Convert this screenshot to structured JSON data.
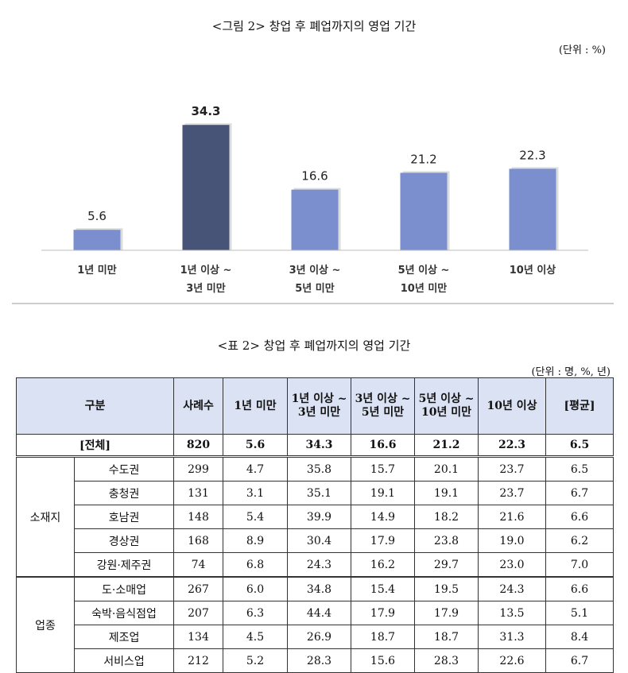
{
  "figure": {
    "title": "<그림 2> 창업 후 폐업까지의 영업 기간",
    "unit": "(단위 : %)"
  },
  "chart_data": {
    "type": "bar",
    "categories": [
      [
        "1년 미만"
      ],
      [
        "1년 이상 ~",
        "3년 미만"
      ],
      [
        "3년 이상 ~",
        "5년 미만"
      ],
      [
        "5년 이상 ~",
        "10년 미만"
      ],
      [
        "10년 이상"
      ]
    ],
    "values": [
      5.6,
      34.3,
      16.6,
      21.2,
      22.3
    ],
    "highlight_index": 1,
    "colors": {
      "bar": "#7b8fcf",
      "highlight": "#475478"
    },
    "ylim": [
      0,
      40
    ],
    "grid": false
  },
  "table": {
    "title": "<표 2> 창업 후 폐업까지의 영업 기간",
    "unit": "(단위 : 명, %, 년)",
    "headers": [
      "구분",
      "사례수",
      "1년 미만",
      "1년 이상 ~ 3년 미만",
      "3년 이상 ~ 5년 미만",
      "5년 이상 ~ 10년 미만",
      "10년 이상",
      "[평균]"
    ],
    "total": {
      "label": "[전체]",
      "values": [
        "820",
        "5.6",
        "34.3",
        "16.6",
        "21.2",
        "22.3",
        "6.5"
      ]
    },
    "groups": [
      {
        "name": "소재지",
        "rows": [
          {
            "label": "수도권",
            "values": [
              "299",
              "4.7",
              "35.8",
              "15.7",
              "20.1",
              "23.7",
              "6.5"
            ]
          },
          {
            "label": "충청권",
            "values": [
              "131",
              "3.1",
              "35.1",
              "19.1",
              "19.1",
              "23.7",
              "6.7"
            ]
          },
          {
            "label": "호남권",
            "values": [
              "148",
              "5.4",
              "39.9",
              "14.9",
              "18.2",
              "21.6",
              "6.6"
            ]
          },
          {
            "label": "경상권",
            "values": [
              "168",
              "8.9",
              "30.4",
              "17.9",
              "23.8",
              "19.0",
              "6.2"
            ]
          },
          {
            "label": "강원·제주권",
            "values": [
              "74",
              "6.8",
              "24.3",
              "16.2",
              "29.7",
              "23.0",
              "7.0"
            ]
          }
        ]
      },
      {
        "name": "업종",
        "rows": [
          {
            "label": "도·소매업",
            "values": [
              "267",
              "6.0",
              "34.8",
              "15.4",
              "19.5",
              "24.3",
              "6.6"
            ]
          },
          {
            "label": "숙박·음식점업",
            "values": [
              "207",
              "6.3",
              "44.4",
              "17.9",
              "17.9",
              "13.5",
              "5.1"
            ]
          },
          {
            "label": "제조업",
            "values": [
              "134",
              "4.5",
              "26.9",
              "18.7",
              "18.7",
              "31.3",
              "8.4"
            ]
          },
          {
            "label": "서비스업",
            "values": [
              "212",
              "5.2",
              "28.3",
              "15.6",
              "28.3",
              "22.6",
              "6.7"
            ]
          }
        ]
      }
    ]
  }
}
